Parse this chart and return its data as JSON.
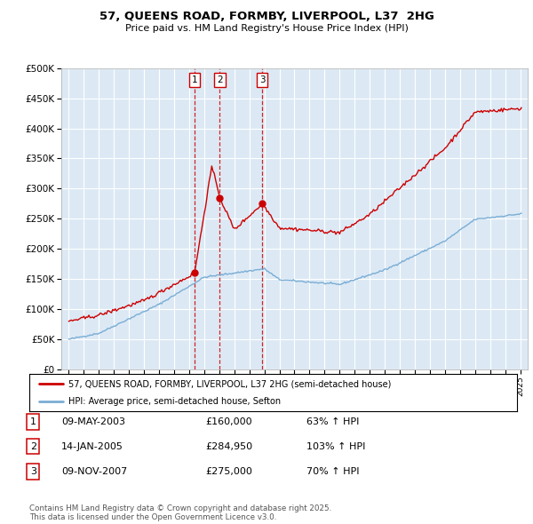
{
  "title": "57, QUEENS ROAD, FORMBY, LIVERPOOL, L37  2HG",
  "subtitle": "Price paid vs. HM Land Registry's House Price Index (HPI)",
  "bg_color": "#dce9f5",
  "red_color": "#cc0000",
  "blue_color": "#7aadd4",
  "vline_color": "#cc0000",
  "grid_color": "#ffffff",
  "ylim": [
    0,
    500000
  ],
  "yticks": [
    0,
    50000,
    100000,
    150000,
    200000,
    250000,
    300000,
    350000,
    400000,
    450000,
    500000
  ],
  "ytick_labels": [
    "£0",
    "£50K",
    "£100K",
    "£150K",
    "£200K",
    "£250K",
    "£300K",
    "£350K",
    "£400K",
    "£450K",
    "£500K"
  ],
  "xlim_start": 1994.5,
  "xlim_end": 2025.5,
  "sale_prices": [
    160000,
    284950,
    275000
  ],
  "sale_labels": [
    "1",
    "2",
    "3"
  ],
  "sale_years": [
    2003.36,
    2005.04,
    2007.86
  ],
  "legend_label_red": "57, QUEENS ROAD, FORMBY, LIVERPOOL, L37 2HG (semi-detached house)",
  "legend_label_blue": "HPI: Average price, semi-detached house, Sefton",
  "table_rows": [
    {
      "num": "1",
      "date": "09-MAY-2003",
      "price": "£160,000",
      "change": "63% ↑ HPI"
    },
    {
      "num": "2",
      "date": "14-JAN-2005",
      "price": "£284,950",
      "change": "103% ↑ HPI"
    },
    {
      "num": "3",
      "date": "09-NOV-2007",
      "price": "£275,000",
      "change": "70% ↑ HPI"
    }
  ],
  "footer": "Contains HM Land Registry data © Crown copyright and database right 2025.\nThis data is licensed under the Open Government Licence v3.0."
}
